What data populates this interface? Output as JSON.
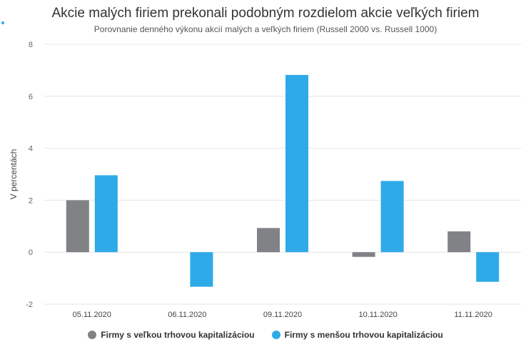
{
  "chart_data": {
    "type": "bar",
    "title": "Akcie malých firiem prekonali podobným rozdielom akcie veľkých firiem",
    "subtitle": "Porovnanie denného výkonu akcií malých a veľkých firiem (Russell 2000 vs. Russell 1000)",
    "ylabel": "V percentách",
    "xlabel": "",
    "categories": [
      "05.11.2020",
      "06.11.2020",
      "09.11.2020",
      "10.11.2020",
      "11.11.2020"
    ],
    "ylim": [
      -2,
      8
    ],
    "yticks": [
      -2,
      0,
      2,
      4,
      6,
      8
    ],
    "grid": true,
    "legend_position": "bottom",
    "series": [
      {
        "name": "Firmy s veľkou trhovou kapitalizáciou",
        "color": "#808285",
        "values": [
          2.0,
          null,
          0.93,
          -0.18,
          0.8
        ]
      },
      {
        "name": "Firmy s menšou trhovou kapitalizáciou",
        "color": "#2eaae8",
        "values": [
          2.96,
          -1.33,
          6.82,
          2.74,
          -1.14
        ]
      }
    ]
  }
}
